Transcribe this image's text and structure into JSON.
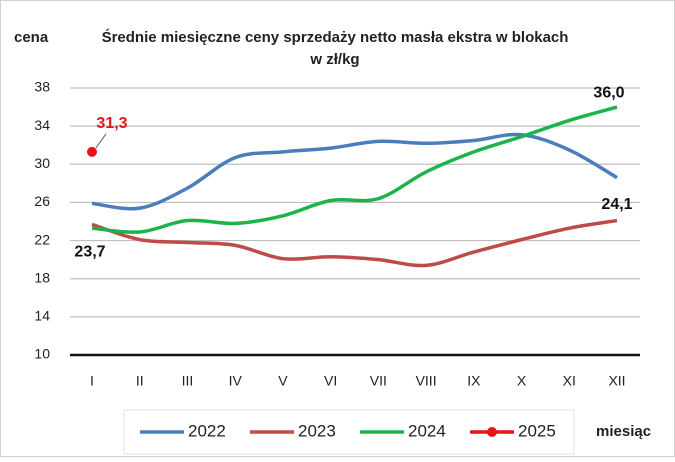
{
  "chart_data": {
    "type": "line",
    "title": "Średnie miesięczne ceny sprzedaży netto masła ekstra w blokach",
    "subtitle": "w zł/kg",
    "y_label": "cena",
    "x_label": "miesiąc",
    "categories": [
      "I",
      "II",
      "III",
      "IV",
      "V",
      "VI",
      "VII",
      "VIII",
      "IX",
      "X",
      "XI",
      "XII"
    ],
    "series": [
      {
        "name": "2022",
        "color": "#4a7ebb",
        "values": [
          25.9,
          25.4,
          27.5,
          30.7,
          31.3,
          31.7,
          32.4,
          32.2,
          32.5,
          33.1,
          31.5,
          28.6
        ]
      },
      {
        "name": "2023",
        "color": "#be4b48",
        "values": [
          23.7,
          22.1,
          21.8,
          21.5,
          20.1,
          20.3,
          20.0,
          19.4,
          20.8,
          22.1,
          23.3,
          24.1
        ],
        "value_labels": [
          "23,7",
          null,
          null,
          null,
          null,
          null,
          null,
          null,
          null,
          null,
          null,
          "24,1"
        ]
      },
      {
        "name": "2024",
        "color": "#1cb34a",
        "values": [
          23.3,
          22.9,
          24.1,
          23.8,
          24.6,
          26.2,
          26.4,
          29.2,
          31.3,
          32.9,
          34.6,
          36.0
        ],
        "value_labels": [
          null,
          null,
          null,
          null,
          null,
          null,
          null,
          null,
          null,
          null,
          null,
          "36,0"
        ]
      },
      {
        "name": "2025",
        "color": "#e8141a",
        "marker": true,
        "values": [
          31.3,
          null,
          null,
          null,
          null,
          null,
          null,
          null,
          null,
          null,
          null,
          null
        ],
        "value_labels": [
          "31,3",
          null,
          null,
          null,
          null,
          null,
          null,
          null,
          null,
          null,
          null,
          null
        ]
      }
    ],
    "ylim": [
      10,
      38
    ],
    "yticks": [
      10,
      14,
      18,
      22,
      26,
      30,
      34,
      38
    ],
    "grid": true,
    "legend": "bottom"
  }
}
